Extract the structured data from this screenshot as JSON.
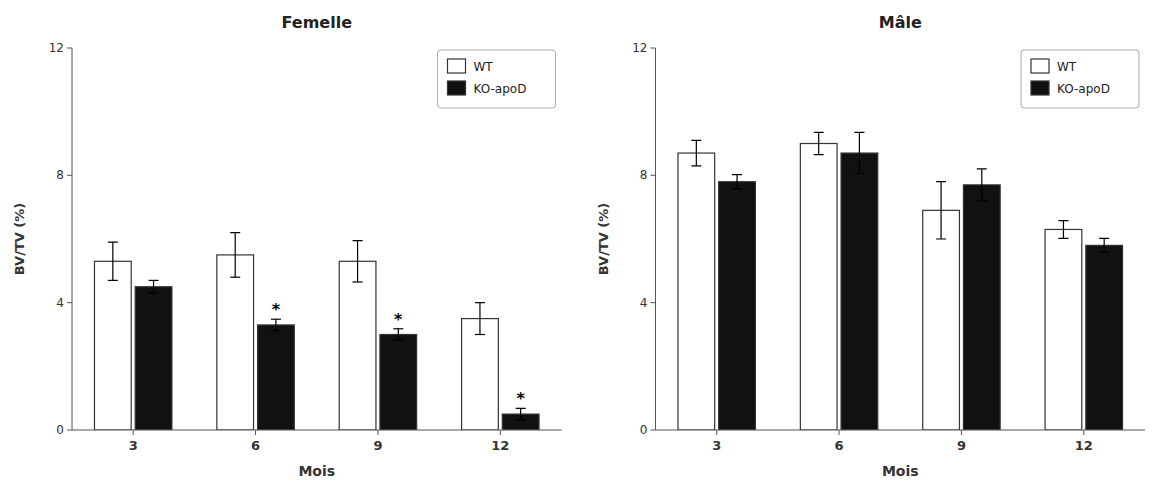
{
  "chart_data": [
    {
      "type": "bar",
      "title": "Femelle",
      "xlabel": "Mois",
      "ylabel": "BV/TV (%)",
      "categories": [
        "3",
        "6",
        "9",
        "12"
      ],
      "series": [
        {
          "name": "WT",
          "color": "#ffffff",
          "values": [
            5.3,
            5.5,
            5.3,
            3.5
          ],
          "errors": [
            0.6,
            0.7,
            0.65,
            0.5
          ]
        },
        {
          "name": "KO-apoD",
          "color": "#111111",
          "values": [
            4.5,
            3.3,
            3.0,
            0.5
          ],
          "errors": [
            0.2,
            0.18,
            0.18,
            0.18
          ]
        }
      ],
      "annotations": [
        {
          "text": "*",
          "series": 1,
          "index": 1
        },
        {
          "text": "*",
          "series": 1,
          "index": 2
        },
        {
          "text": "*",
          "series": 1,
          "index": 3
        }
      ],
      "ylim": [
        0,
        12
      ],
      "yticks": [
        0,
        4,
        8,
        12
      ],
      "grid": false,
      "legend": "upper right"
    },
    {
      "type": "bar",
      "title": "Mâle",
      "xlabel": "Mois",
      "ylabel": "BV/TV (%)",
      "categories": [
        "3",
        "6",
        "9",
        "12"
      ],
      "series": [
        {
          "name": "WT",
          "color": "#ffffff",
          "values": [
            8.7,
            9.0,
            6.9,
            6.3
          ],
          "errors": [
            0.4,
            0.35,
            0.9,
            0.28
          ]
        },
        {
          "name": "KO-apoD",
          "color": "#111111",
          "values": [
            7.8,
            8.7,
            7.7,
            5.8
          ],
          "errors": [
            0.22,
            0.65,
            0.5,
            0.22
          ]
        }
      ],
      "ylim": [
        0,
        12
      ],
      "yticks": [
        0,
        4,
        8,
        12
      ],
      "grid": false,
      "legend": "upper right"
    }
  ]
}
